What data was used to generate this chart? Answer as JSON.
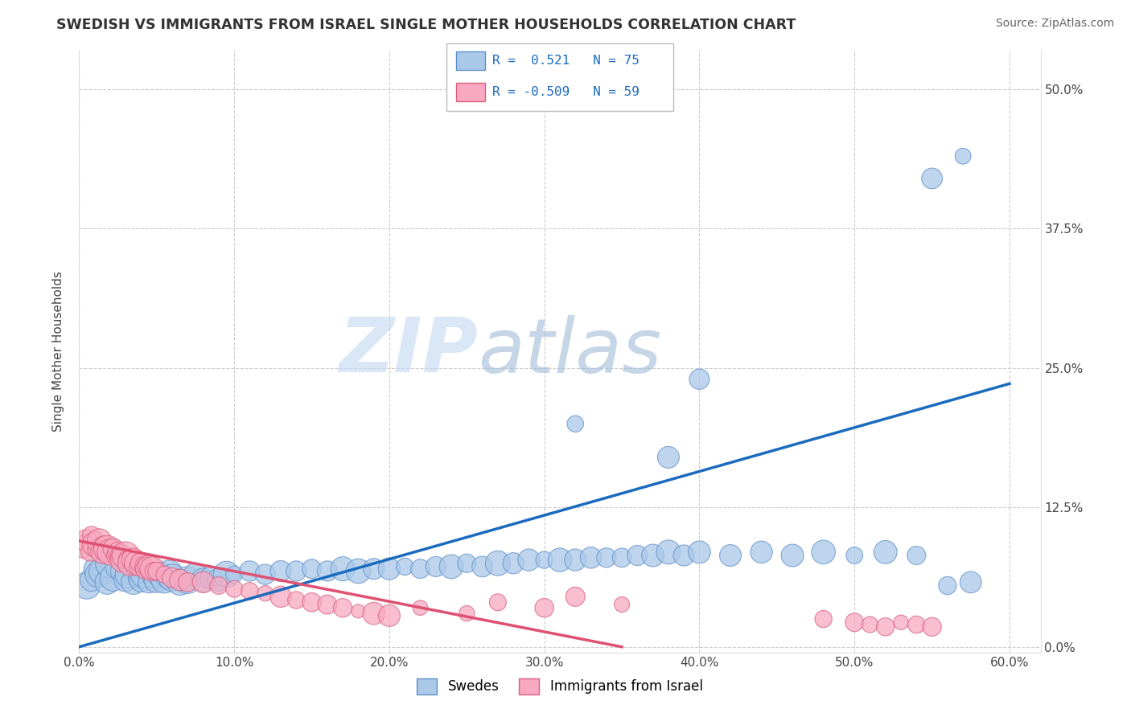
{
  "title": "SWEDISH VS IMMIGRANTS FROM ISRAEL SINGLE MOTHER HOUSEHOLDS CORRELATION CHART",
  "source": "Source: ZipAtlas.com",
  "ylabel": "Single Mother Households",
  "xlim": [
    0.0,
    0.62
  ],
  "ylim": [
    -0.005,
    0.535
  ],
  "swedes_color": "#aac8e8",
  "swedes_edge": "#6090c8",
  "israel_color": "#f8a8c0",
  "israel_edge": "#d86080",
  "trend_swedes_color": "#1a6bbf",
  "trend_israel_color": "#e05070",
  "legend_swedes": "Swedes",
  "legend_israel": "Immigrants from Israel",
  "watermark_zip": "ZIP",
  "watermark_atlas": "atlas",
  "ytick_vals": [
    0.0,
    0.125,
    0.25,
    0.375,
    0.5
  ],
  "ytick_labels": [
    "0.0%",
    "12.5%",
    "25.0%",
    "37.5%",
    "50.0%"
  ],
  "xtick_vals": [
    0.0,
    0.1,
    0.2,
    0.3,
    0.4,
    0.5,
    0.6
  ],
  "xtick_labels": [
    "0.0%",
    "10.0%",
    "20.0%",
    "30.0%",
    "40.0%",
    "50.0%",
    "60.0%"
  ],
  "sw_trend_x": [
    0.0,
    0.6
  ],
  "sw_trend_y": [
    0.0,
    0.236
  ],
  "is_trend_x": [
    0.0,
    0.35
  ],
  "is_trend_y": [
    0.095,
    0.0
  ]
}
